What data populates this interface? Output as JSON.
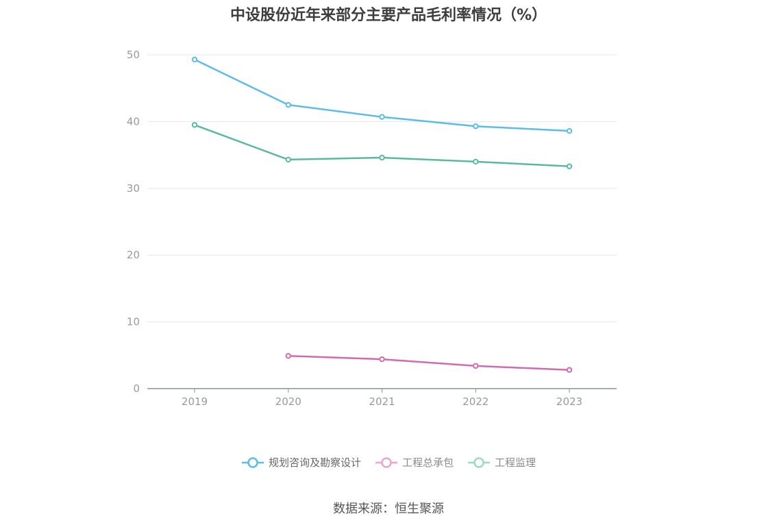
{
  "chart_data": {
    "type": "line",
    "title": "中设股份近年来部分主要产品毛利率情况（%）",
    "categories": [
      "2019",
      "2020",
      "2021",
      "2022",
      "2023"
    ],
    "series": [
      {
        "name": "规划咨询及勘察设计",
        "color": "#5bbcea",
        "values": [
          49.3,
          42.5,
          40.7,
          39.3,
          38.6
        ]
      },
      {
        "name": "工程总承包",
        "color": "#d16aae",
        "values": [
          null,
          4.9,
          4.4,
          3.4,
          2.8
        ]
      },
      {
        "name": "工程监理",
        "color": "#58b9a0",
        "values": [
          39.5,
          34.3,
          34.6,
          34.0,
          33.3
        ]
      }
    ],
    "ylim": [
      0,
      50
    ],
    "yticks": [
      0,
      10,
      20,
      30,
      40,
      50
    ],
    "grid": true,
    "legend_position": "bottom"
  },
  "legend": {
    "items": [
      {
        "label": "规划咨询及勘察设计",
        "color": "#5bbcea"
      },
      {
        "label": "工程总承包",
        "color": "#e8a6cf"
      },
      {
        "label": "工程监理",
        "color": "#9dd8c8"
      }
    ]
  },
  "source": "数据来源：恒生聚源"
}
